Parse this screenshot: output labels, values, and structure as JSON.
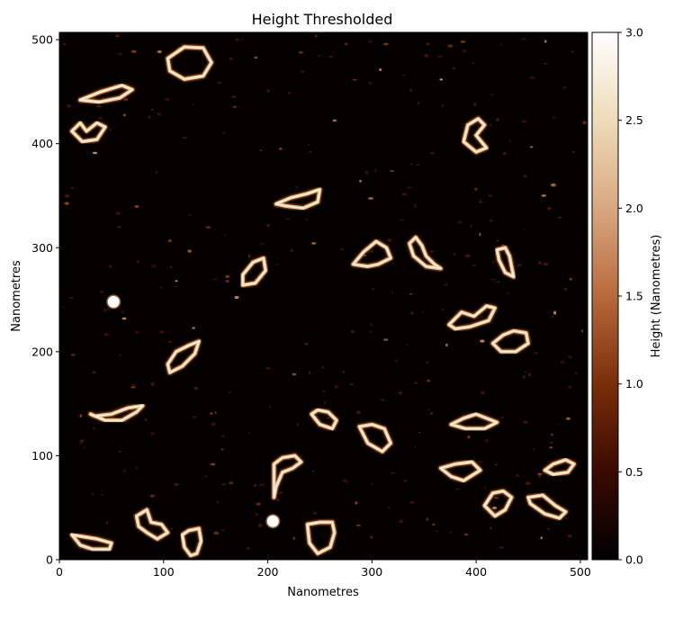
{
  "chart_data": {
    "type": "heatmap",
    "title": "Height Thresholded",
    "xlabel": "Nanometres",
    "ylabel": "Nanometres",
    "xlim": [
      0,
      507
    ],
    "ylim": [
      0,
      507
    ],
    "xticks": [
      "0",
      "100",
      "200",
      "300",
      "400",
      "500"
    ],
    "yticks": [
      "0",
      "100",
      "200",
      "300",
      "400",
      "500"
    ],
    "colorbar": {
      "label": "Height (Nanometres)",
      "range": [
        0.0,
        3.0
      ],
      "ticks": [
        "0.0",
        "0.5",
        "1.0",
        "1.5",
        "2.0",
        "2.5",
        "3.0"
      ],
      "colormap": [
        "#000000",
        "#3a0a00",
        "#7a2e08",
        "#b86a3c",
        "#d8a880",
        "#eedcb8",
        "#ffffff"
      ]
    },
    "blobs_nm": [
      [
        52,
        248
      ],
      [
        205,
        37
      ]
    ],
    "loops_nm": [
      [
        [
          120,
          493
        ],
        [
          138,
          492
        ],
        [
          146,
          478
        ],
        [
          138,
          465
        ],
        [
          120,
          462
        ],
        [
          106,
          470
        ],
        [
          104,
          482
        ]
      ],
      [
        [
          20,
          442
        ],
        [
          40,
          450
        ],
        [
          60,
          456
        ],
        [
          70,
          452
        ],
        [
          58,
          444
        ],
        [
          38,
          440
        ]
      ],
      [
        [
          12,
          412
        ],
        [
          20,
          420
        ],
        [
          26,
          412
        ],
        [
          36,
          420
        ],
        [
          44,
          416
        ],
        [
          36,
          404
        ],
        [
          22,
          402
        ],
        [
          12,
          412
        ]
      ],
      [
        [
          392,
          418
        ],
        [
          402,
          424
        ],
        [
          408,
          418
        ],
        [
          400,
          408
        ],
        [
          410,
          396
        ],
        [
          400,
          392
        ],
        [
          388,
          402
        ]
      ],
      [
        [
          208,
          342
        ],
        [
          222,
          348
        ],
        [
          238,
          352
        ],
        [
          250,
          356
        ],
        [
          248,
          344
        ],
        [
          234,
          338
        ],
        [
          218,
          340
        ]
      ],
      [
        [
          282,
          284
        ],
        [
          292,
          296
        ],
        [
          304,
          306
        ],
        [
          314,
          300
        ],
        [
          318,
          290
        ],
        [
          306,
          284
        ],
        [
          296,
          282
        ]
      ],
      [
        [
          336,
          304
        ],
        [
          342,
          310
        ],
        [
          348,
          302
        ],
        [
          352,
          292
        ],
        [
          360,
          284
        ],
        [
          366,
          280
        ],
        [
          352,
          282
        ],
        [
          340,
          292
        ]
      ],
      [
        [
          420,
          298
        ],
        [
          428,
          300
        ],
        [
          432,
          292
        ],
        [
          434,
          282
        ],
        [
          436,
          272
        ],
        [
          428,
          276
        ],
        [
          422,
          288
        ]
      ],
      [
        [
          176,
          274
        ],
        [
          186,
          286
        ],
        [
          196,
          290
        ],
        [
          198,
          278
        ],
        [
          188,
          266
        ],
        [
          176,
          264
        ]
      ],
      [
        [
          374,
          226
        ],
        [
          386,
          238
        ],
        [
          398,
          234
        ],
        [
          410,
          244
        ],
        [
          418,
          242
        ],
        [
          412,
          230
        ],
        [
          394,
          224
        ],
        [
          380,
          222
        ]
      ],
      [
        [
          416,
          208
        ],
        [
          426,
          216
        ],
        [
          436,
          220
        ],
        [
          448,
          218
        ],
        [
          450,
          208
        ],
        [
          438,
          200
        ],
        [
          424,
          200
        ]
      ],
      [
        [
          104,
          188
        ],
        [
          112,
          200
        ],
        [
          124,
          206
        ],
        [
          134,
          210
        ],
        [
          130,
          198
        ],
        [
          118,
          186
        ],
        [
          106,
          180
        ]
      ],
      [
        [
          30,
          140
        ],
        [
          44,
          134
        ],
        [
          60,
          134
        ],
        [
          74,
          142
        ],
        [
          80,
          148
        ],
        [
          66,
          146
        ],
        [
          50,
          140
        ],
        [
          34,
          138
        ]
      ],
      [
        [
          242,
          140
        ],
        [
          250,
          130
        ],
        [
          262,
          126
        ],
        [
          266,
          134
        ],
        [
          258,
          142
        ],
        [
          248,
          144
        ]
      ],
      [
        [
          288,
          128
        ],
        [
          296,
          112
        ],
        [
          310,
          104
        ],
        [
          318,
          112
        ],
        [
          312,
          126
        ],
        [
          300,
          130
        ]
      ],
      [
        [
          376,
          130
        ],
        [
          388,
          136
        ],
        [
          400,
          140
        ],
        [
          410,
          136
        ],
        [
          420,
          132
        ],
        [
          408,
          126
        ],
        [
          390,
          126
        ]
      ],
      [
        [
          206,
          92
        ],
        [
          214,
          98
        ],
        [
          226,
          100
        ],
        [
          232,
          94
        ],
        [
          224,
          88
        ],
        [
          214,
          84
        ],
        [
          208,
          70
        ],
        [
          206,
          60
        ]
      ],
      [
        [
          366,
          88
        ],
        [
          376,
          80
        ],
        [
          388,
          76
        ],
        [
          404,
          86
        ],
        [
          396,
          94
        ],
        [
          380,
          92
        ]
      ],
      [
        [
          466,
          86
        ],
        [
          474,
          92
        ],
        [
          486,
          96
        ],
        [
          494,
          92
        ],
        [
          488,
          84
        ],
        [
          474,
          82
        ]
      ],
      [
        [
          408,
          52
        ],
        [
          416,
          64
        ],
        [
          426,
          66
        ],
        [
          434,
          60
        ],
        [
          428,
          48
        ],
        [
          418,
          42
        ]
      ],
      [
        [
          450,
          60
        ],
        [
          464,
          62
        ],
        [
          476,
          52
        ],
        [
          486,
          46
        ],
        [
          480,
          40
        ],
        [
          466,
          44
        ],
        [
          452,
          54
        ]
      ],
      [
        [
          12,
          24
        ],
        [
          20,
          14
        ],
        [
          32,
          10
        ],
        [
          48,
          10
        ],
        [
          50,
          16
        ],
        [
          36,
          20
        ],
        [
          24,
          22
        ]
      ],
      [
        [
          74,
          42
        ],
        [
          84,
          48
        ],
        [
          88,
          36
        ],
        [
          98,
          34
        ],
        [
          104,
          26
        ],
        [
          94,
          20
        ],
        [
          84,
          26
        ],
        [
          76,
          32
        ]
      ],
      [
        [
          238,
          34
        ],
        [
          250,
          36
        ],
        [
          262,
          36
        ],
        [
          264,
          26
        ],
        [
          260,
          12
        ],
        [
          248,
          6
        ],
        [
          240,
          16
        ]
      ],
      [
        [
          118,
          24
        ],
        [
          124,
          28
        ],
        [
          134,
          30
        ],
        [
          136,
          18
        ],
        [
          132,
          6
        ],
        [
          126,
          4
        ],
        [
          120,
          12
        ]
      ]
    ]
  }
}
